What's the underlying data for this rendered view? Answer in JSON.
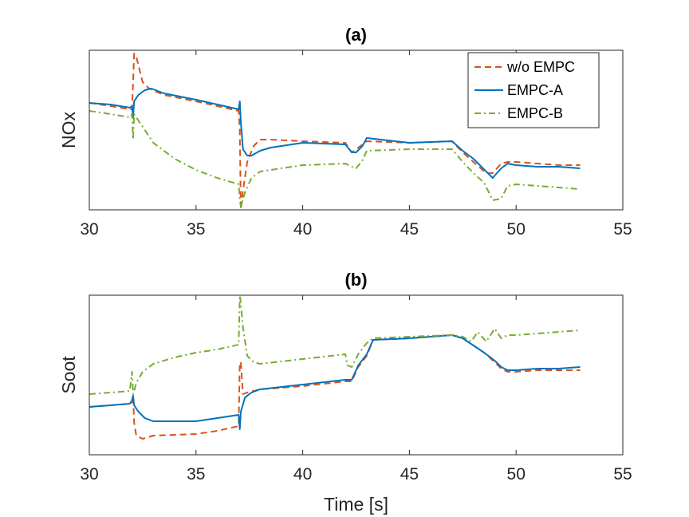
{
  "chart_data": [
    {
      "type": "line",
      "title": "(a)",
      "xlabel": "",
      "ylabel": "NOx",
      "xlim": [
        30,
        55
      ],
      "ylim": [
        0,
        1
      ],
      "xticks": [
        30,
        35,
        40,
        45,
        50,
        55
      ],
      "yticks": [],
      "legend": {
        "placement": "top-right",
        "entries": [
          "w/o EMPC",
          "EMPC-A",
          "EMPC-B"
        ]
      },
      "series": [
        {
          "name": "w/o EMPC",
          "color": "#D95319",
          "style": "dashed",
          "x": [
            30,
            31,
            31.9,
            32.0,
            32.05,
            32.1,
            32.2,
            32.5,
            32.8,
            33.5,
            35,
            36,
            37.0,
            37.05,
            37.1,
            37.2,
            37.4,
            37.7,
            38.0,
            38.5,
            40,
            42.0,
            42.3,
            42.5,
            42.7,
            43.0,
            45,
            47.0,
            47.5,
            48,
            48.6,
            48.9,
            49.3,
            49.6,
            50,
            51,
            52,
            53
          ],
          "y": [
            0.67,
            0.65,
            0.63,
            0.63,
            0.8,
            0.98,
            0.96,
            0.8,
            0.76,
            0.72,
            0.68,
            0.65,
            0.62,
            0.5,
            0.0,
            0.12,
            0.3,
            0.4,
            0.44,
            0.44,
            0.43,
            0.42,
            0.36,
            0.38,
            0.4,
            0.43,
            0.42,
            0.43,
            0.36,
            0.3,
            0.23,
            0.23,
            0.29,
            0.3,
            0.3,
            0.29,
            0.28,
            0.28
          ]
        },
        {
          "name": "EMPC-A",
          "color": "#0072BD",
          "style": "solid",
          "x": [
            30,
            31,
            31.9,
            32.0,
            32.05,
            32.1,
            32.3,
            32.6,
            32.9,
            33.5,
            35,
            36,
            37.0,
            37.05,
            37.1,
            37.2,
            37.4,
            37.6,
            38.0,
            38.5,
            40,
            42.0,
            42.3,
            42.5,
            42.8,
            43.0,
            45,
            47.0,
            47.5,
            48,
            48.6,
            48.9,
            49.3,
            49.6,
            50,
            51,
            52,
            53
          ],
          "y": [
            0.67,
            0.66,
            0.64,
            0.65,
            0.58,
            0.68,
            0.72,
            0.75,
            0.76,
            0.73,
            0.69,
            0.66,
            0.63,
            0.68,
            0.55,
            0.38,
            0.34,
            0.34,
            0.37,
            0.39,
            0.42,
            0.41,
            0.36,
            0.36,
            0.4,
            0.45,
            0.42,
            0.43,
            0.37,
            0.32,
            0.24,
            0.2,
            0.26,
            0.29,
            0.28,
            0.27,
            0.27,
            0.26
          ]
        },
        {
          "name": "EMPC-B",
          "color": "#77AC30",
          "style": "dashdot",
          "x": [
            30,
            31,
            31.9,
            32.0,
            32.05,
            32.1,
            32.3,
            32.6,
            33.0,
            34,
            35,
            36,
            37.0,
            37.05,
            37.1,
            37.3,
            37.6,
            38.0,
            39,
            40,
            42.0,
            42.3,
            42.5,
            42.8,
            43.0,
            45,
            47.0,
            47.5,
            48,
            48.5,
            48.9,
            49.3,
            49.6,
            50,
            51,
            52,
            53
          ],
          "y": [
            0.62,
            0.6,
            0.58,
            0.6,
            0.44,
            0.6,
            0.56,
            0.5,
            0.42,
            0.32,
            0.25,
            0.2,
            0.16,
            0.07,
            0.02,
            0.11,
            0.2,
            0.24,
            0.26,
            0.28,
            0.29,
            0.27,
            0.26,
            0.31,
            0.37,
            0.38,
            0.38,
            0.3,
            0.23,
            0.17,
            0.06,
            0.07,
            0.15,
            0.16,
            0.15,
            0.14,
            0.13
          ]
        }
      ]
    },
    {
      "type": "line",
      "title": "(b)",
      "xlabel": "Time [s]",
      "ylabel": "Soot",
      "xlim": [
        30,
        55
      ],
      "ylim": [
        0,
        1
      ],
      "xticks": [
        30,
        35,
        40,
        45,
        50,
        55
      ],
      "yticks": [],
      "series": [
        {
          "name": "w/o EMPC",
          "color": "#D95319",
          "style": "dashed",
          "x": [
            30,
            31,
            31.9,
            32.0,
            32.05,
            32.1,
            32.2,
            32.5,
            33,
            35,
            36,
            37.0,
            37.05,
            37.1,
            37.2,
            37.4,
            38,
            40,
            42.0,
            42.3,
            42.6,
            43.0,
            43.3,
            45,
            47.0,
            47.5,
            48.5,
            49,
            49.3,
            49.6,
            50,
            51,
            52,
            53
          ],
          "y": [
            0.3,
            0.31,
            0.32,
            0.33,
            0.37,
            0.2,
            0.12,
            0.1,
            0.12,
            0.13,
            0.15,
            0.18,
            0.58,
            0.58,
            0.38,
            0.39,
            0.41,
            0.43,
            0.46,
            0.46,
            0.55,
            0.62,
            0.72,
            0.73,
            0.75,
            0.73,
            0.64,
            0.58,
            0.54,
            0.52,
            0.52,
            0.53,
            0.53,
            0.53
          ]
        },
        {
          "name": "EMPC-A",
          "color": "#0072BD",
          "style": "solid",
          "x": [
            30,
            31,
            31.9,
            32.0,
            32.05,
            32.1,
            32.3,
            32.6,
            33,
            35,
            36,
            37.0,
            37.05,
            37.1,
            37.3,
            37.6,
            38,
            40,
            42.0,
            42.3,
            42.6,
            43.0,
            43.3,
            45,
            47.0,
            47.5,
            48.5,
            49,
            49.3,
            49.6,
            50,
            51,
            52,
            53
          ],
          "y": [
            0.3,
            0.31,
            0.32,
            0.34,
            0.37,
            0.31,
            0.27,
            0.23,
            0.21,
            0.21,
            0.23,
            0.25,
            0.16,
            0.27,
            0.36,
            0.39,
            0.41,
            0.44,
            0.47,
            0.47,
            0.56,
            0.63,
            0.72,
            0.73,
            0.75,
            0.73,
            0.64,
            0.59,
            0.55,
            0.53,
            0.53,
            0.54,
            0.54,
            0.55
          ]
        },
        {
          "name": "EMPC-B",
          "color": "#77AC30",
          "style": "dashdot",
          "x": [
            30,
            31,
            31.9,
            32.0,
            32.05,
            32.1,
            32.2,
            32.5,
            33,
            34,
            35,
            36,
            37.0,
            37.05,
            37.1,
            37.2,
            37.4,
            37.7,
            38,
            40,
            42.0,
            42.1,
            42.3,
            42.6,
            43.0,
            43.3,
            45,
            47.0,
            47.5,
            47.9,
            48.2,
            48.6,
            49.0,
            49.3,
            49.6,
            50,
            51,
            52,
            53
          ],
          "y": [
            0.38,
            0.39,
            0.4,
            0.52,
            0.38,
            0.4,
            0.45,
            0.52,
            0.57,
            0.61,
            0.64,
            0.66,
            0.69,
            1.0,
            0.95,
            0.8,
            0.62,
            0.58,
            0.57,
            0.6,
            0.63,
            0.56,
            0.55,
            0.63,
            0.7,
            0.73,
            0.74,
            0.75,
            0.74,
            0.71,
            0.77,
            0.71,
            0.79,
            0.73,
            0.75,
            0.75,
            0.76,
            0.77,
            0.78
          ]
        }
      ]
    }
  ]
}
